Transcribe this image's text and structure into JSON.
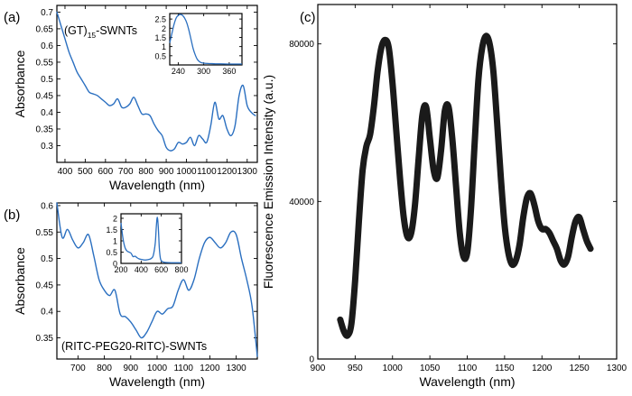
{
  "colors": {
    "spectrum_blue": "#2a6fc0",
    "emission_black": "#1a1a1a"
  },
  "chart_data": [
    {
      "panel": "(a)",
      "type": "line",
      "annotation": "(GT)",
      "annotation_sub": "15",
      "annotation_suffix": "-SWNTs",
      "xlabel": "Wavelength (nm)",
      "ylabel": "Absorbance",
      "xlim": [
        360,
        1350
      ],
      "ylim": [
        0.25,
        0.72
      ],
      "xticks": [
        400,
        500,
        600,
        700,
        800,
        900,
        1000,
        1100,
        1200,
        1300
      ],
      "yticks": [
        0.3,
        0.35,
        0.4,
        0.45,
        0.5,
        0.55,
        0.6,
        0.65,
        0.7
      ],
      "series": [
        {
          "x": [
            360,
            380,
            400,
            420,
            440,
            460,
            480,
            500,
            520,
            540,
            560,
            580,
            600,
            620,
            640,
            660,
            680,
            700,
            720,
            740,
            760,
            780,
            800,
            820,
            840,
            860,
            880,
            900,
            920,
            940,
            960,
            980,
            1000,
            1020,
            1040,
            1060,
            1080,
            1100,
            1120,
            1140,
            1160,
            1180,
            1200,
            1220,
            1240,
            1260,
            1280,
            1300,
            1320,
            1340
          ],
          "y": [
            0.7,
            0.66,
            0.62,
            0.58,
            0.55,
            0.52,
            0.5,
            0.48,
            0.46,
            0.455,
            0.45,
            0.44,
            0.43,
            0.42,
            0.425,
            0.44,
            0.415,
            0.415,
            0.425,
            0.445,
            0.42,
            0.395,
            0.395,
            0.39,
            0.365,
            0.345,
            0.33,
            0.295,
            0.285,
            0.29,
            0.31,
            0.305,
            0.31,
            0.325,
            0.3,
            0.33,
            0.32,
            0.31,
            0.36,
            0.43,
            0.38,
            0.39,
            0.35,
            0.33,
            0.36,
            0.45,
            0.48,
            0.42,
            0.4,
            0.39
          ]
        }
      ],
      "inset": {
        "type": "line",
        "xlim": [
          220,
          390
        ],
        "ylim": [
          0,
          2.8
        ],
        "xticks": [
          240,
          300,
          360
        ],
        "yticks": [
          0.5,
          1,
          1.5,
          2,
          2.5
        ],
        "x": [
          220,
          225,
          230,
          235,
          240,
          245,
          250,
          255,
          260,
          265,
          270,
          275,
          280,
          285,
          290,
          295,
          300,
          310,
          320,
          330,
          340,
          360,
          380,
          390
        ],
        "y": [
          1.2,
          1.7,
          2.2,
          2.55,
          2.7,
          2.75,
          2.7,
          2.55,
          2.3,
          1.9,
          1.4,
          0.9,
          0.55,
          0.3,
          0.18,
          0.12,
          0.1,
          0.08,
          0.07,
          0.06,
          0.06,
          0.05,
          0.05,
          0.05
        ]
      }
    },
    {
      "panel": "(b)",
      "type": "line",
      "annotation": "(RITC-PEG20-RITC)-SWNTs",
      "xlabel": "Wavelength (nm)",
      "ylabel": "Absorbance",
      "xlim": [
        620,
        1380
      ],
      "ylim": [
        0.31,
        0.605
      ],
      "xticks": [
        700,
        800,
        900,
        1000,
        1100,
        1200,
        1300
      ],
      "yticks": [
        0.35,
        0.4,
        0.45,
        0.5,
        0.55,
        0.6
      ],
      "series": [
        {
          "x": [
            620,
            640,
            660,
            680,
            700,
            720,
            740,
            760,
            780,
            800,
            820,
            840,
            860,
            880,
            900,
            920,
            940,
            960,
            980,
            1000,
            1020,
            1040,
            1060,
            1080,
            1100,
            1120,
            1140,
            1160,
            1180,
            1200,
            1220,
            1240,
            1260,
            1280,
            1300,
            1320,
            1340,
            1360,
            1380
          ],
          "y": [
            0.605,
            0.54,
            0.555,
            0.535,
            0.52,
            0.53,
            0.545,
            0.505,
            0.46,
            0.44,
            0.43,
            0.44,
            0.395,
            0.39,
            0.38,
            0.365,
            0.35,
            0.36,
            0.38,
            0.4,
            0.395,
            0.405,
            0.41,
            0.44,
            0.46,
            0.44,
            0.46,
            0.5,
            0.53,
            0.54,
            0.53,
            0.52,
            0.53,
            0.55,
            0.545,
            0.5,
            0.46,
            0.41,
            0.315
          ]
        }
      ],
      "inset": {
        "type": "line",
        "xlim": [
          200,
          800
        ],
        "ylim": [
          0,
          2.2
        ],
        "xticks": [
          200,
          400,
          600,
          800
        ],
        "yticks": [
          0,
          0.5,
          1,
          1.5,
          2
        ],
        "x": [
          200,
          220,
          240,
          260,
          280,
          300,
          320,
          340,
          360,
          380,
          400,
          420,
          440,
          460,
          480,
          500,
          520,
          540,
          550,
          560,
          570,
          580,
          590,
          600,
          620,
          650,
          700,
          750,
          800
        ],
        "y": [
          1.8,
          1.1,
          0.7,
          0.55,
          0.5,
          0.45,
          0.3,
          0.32,
          0.25,
          0.2,
          0.18,
          0.16,
          0.15,
          0.16,
          0.18,
          0.22,
          0.35,
          0.9,
          1.6,
          2.05,
          1.6,
          0.7,
          0.25,
          0.12,
          0.06,
          0.04,
          0.03,
          0.03,
          0.03
        ]
      }
    },
    {
      "panel": "(c)",
      "type": "line",
      "xlabel": "Wavelength (nm)",
      "ylabel": "Fluorescence Emission Intensity (a.u.)",
      "xlim": [
        900,
        1300
      ],
      "ylim": [
        0,
        90000
      ],
      "xticks": [
        900,
        950,
        1000,
        1050,
        1100,
        1150,
        1200,
        1250,
        1300
      ],
      "yticks": [
        0,
        40000,
        80000
      ],
      "series": [
        {
          "x": [
            930,
            935,
            940,
            945,
            950,
            955,
            960,
            965,
            970,
            975,
            980,
            985,
            990,
            995,
            1000,
            1005,
            1010,
            1015,
            1020,
            1025,
            1030,
            1035,
            1040,
            1045,
            1050,
            1055,
            1060,
            1065,
            1070,
            1075,
            1080,
            1085,
            1090,
            1095,
            1100,
            1105,
            1110,
            1115,
            1120,
            1125,
            1130,
            1135,
            1140,
            1145,
            1150,
            1155,
            1160,
            1165,
            1170,
            1175,
            1180,
            1185,
            1190,
            1195,
            1200,
            1205,
            1210,
            1215,
            1220,
            1225,
            1230,
            1235,
            1240,
            1245,
            1250,
            1255,
            1260,
            1265
          ],
          "y": [
            10000,
            7000,
            6000,
            9000,
            20000,
            35000,
            48000,
            54000,
            57000,
            64000,
            73000,
            79000,
            81000,
            79000,
            70000,
            58000,
            46000,
            36000,
            31000,
            32000,
            39000,
            51000,
            62000,
            64000,
            56000,
            48000,
            46000,
            53000,
            63000,
            64000,
            56000,
            44000,
            32000,
            26000,
            27000,
            38000,
            55000,
            71000,
            79000,
            82000,
            80000,
            73000,
            60000,
            46000,
            34000,
            27000,
            24000,
            25000,
            29000,
            36000,
            41000,
            42000,
            39000,
            35000,
            33000,
            33000,
            32000,
            30000,
            28000,
            25000,
            24000,
            26000,
            31000,
            35000,
            36000,
            33000,
            30000,
            28000
          ]
        }
      ]
    }
  ]
}
